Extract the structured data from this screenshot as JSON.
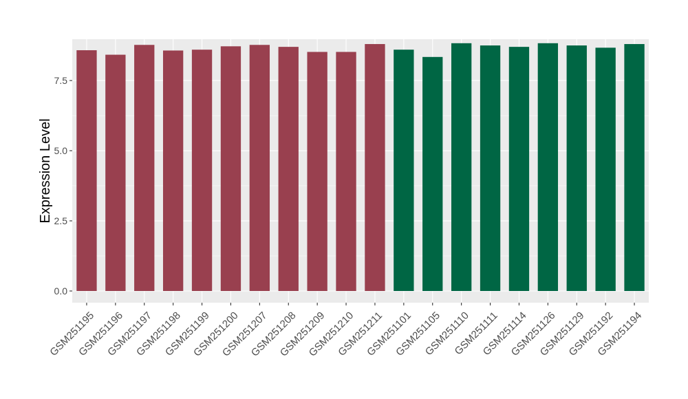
{
  "chart_data": {
    "type": "bar",
    "title": "",
    "xlabel": "",
    "ylabel": "Expression Level",
    "ylim": [
      0,
      8.85
    ],
    "yticks": [
      0.0,
      2.5,
      5.0,
      7.5
    ],
    "ytick_labels": [
      "0.0",
      "2.5",
      "5.0",
      "7.5"
    ],
    "grid": true,
    "legend": "none",
    "categories": [
      "GSM251195",
      "GSM251196",
      "GSM251197",
      "GSM251198",
      "GSM251199",
      "GSM251200",
      "GSM251207",
      "GSM251208",
      "GSM251209",
      "GSM251210",
      "GSM251211",
      "GSM251101",
      "GSM251105",
      "GSM251110",
      "GSM251111",
      "GSM251114",
      "GSM251126",
      "GSM251129",
      "GSM251192",
      "GSM251194"
    ],
    "values": [
      8.58,
      8.42,
      8.77,
      8.57,
      8.6,
      8.72,
      8.77,
      8.7,
      8.52,
      8.52,
      8.8,
      8.6,
      8.34,
      8.83,
      8.75,
      8.7,
      8.83,
      8.75,
      8.67,
      8.8
    ],
    "colors": [
      "#99404f",
      "#99404f",
      "#99404f",
      "#99404f",
      "#99404f",
      "#99404f",
      "#99404f",
      "#99404f",
      "#99404f",
      "#99404f",
      "#99404f",
      "#006644",
      "#006644",
      "#006644",
      "#006644",
      "#006644",
      "#006644",
      "#006644",
      "#006644",
      "#006644"
    ],
    "panel_background": "#ebebeb",
    "grid_color": "#ffffff"
  }
}
